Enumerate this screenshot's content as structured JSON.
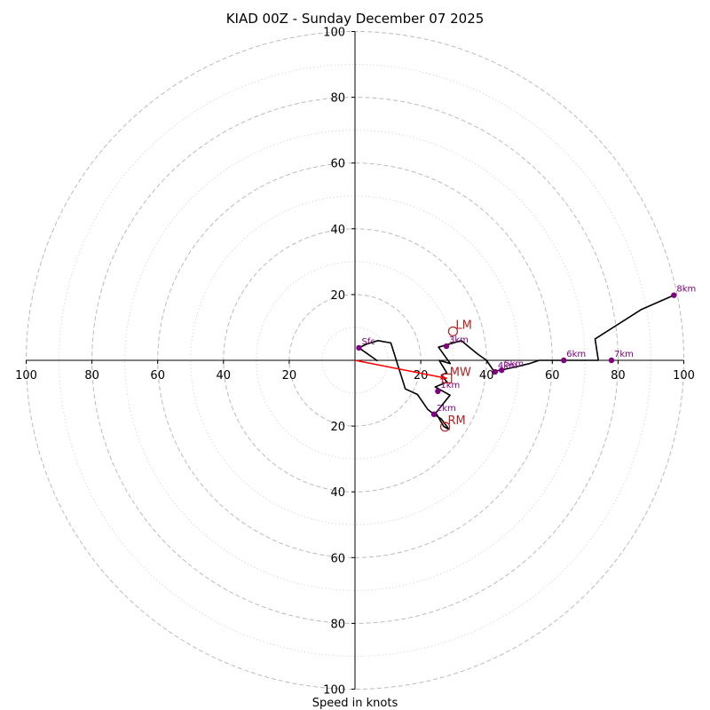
{
  "chart_data": {
    "type": "hodograph",
    "title": "KIAD 00Z - Sunday December 07 2025",
    "xlabel": "Speed in knots",
    "ylabel": "",
    "range": [
      -100,
      100
    ],
    "ring_major": [
      20,
      40,
      60,
      80,
      100
    ],
    "ring_minor": [
      10,
      30,
      50,
      70,
      90
    ],
    "x_tick_labels": [
      {
        "value": -100,
        "label": "100"
      },
      {
        "value": -80,
        "label": "80"
      },
      {
        "value": -60,
        "label": "60"
      },
      {
        "value": -40,
        "label": "40"
      },
      {
        "value": -20,
        "label": "20"
      },
      {
        "value": 20,
        "label": "20"
      },
      {
        "value": 40,
        "label": "40"
      },
      {
        "value": 60,
        "label": "60"
      },
      {
        "value": 80,
        "label": "80"
      },
      {
        "value": 100,
        "label": "100"
      }
    ],
    "y_tick_labels": [
      {
        "value": 100,
        "label": "100"
      },
      {
        "value": 80,
        "label": "80"
      },
      {
        "value": 60,
        "label": "60"
      },
      {
        "value": 40,
        "label": "40"
      },
      {
        "value": 20,
        "label": "20"
      },
      {
        "value": -20,
        "label": "20"
      },
      {
        "value": -40,
        "label": "40"
      },
      {
        "value": -60,
        "label": "60"
      },
      {
        "value": -80,
        "label": "80"
      },
      {
        "value": -100,
        "label": "100"
      }
    ],
    "wind_profile": {
      "u": [
        1.2,
        3.7,
        7.0,
        10.9,
        15.3,
        19.0,
        22.1,
        24.0,
        26.2,
        28.6,
        27.0,
        24.6,
        28.9,
        24.4,
        28.0,
        26.3,
        27.9,
        25.6,
        29.0,
        25.4,
        32.3,
        37.2,
        40.0,
        42.1,
        43.8,
        48.9,
        53.0,
        56.0,
        63.5,
        74.0,
        73.0,
        87.0,
        97.0
      ],
      "v": [
        3.8,
        5.0,
        6.0,
        5.3,
        -8.7,
        -10.4,
        -14.9,
        -16.4,
        -17.8,
        -21.0,
        -20.1,
        -16.0,
        -10.6,
        -8.1,
        -6.6,
        -4.5,
        -3.8,
        0.0,
        -1.0,
        4.0,
        6.0,
        2.0,
        0.0,
        -3.1,
        -3.1,
        -2.0,
        -1.0,
        0.0,
        0.0,
        0.0,
        6.5,
        15.4,
        19.8
      ]
    },
    "start_segment": {
      "u": [
        1.2,
        6.9
      ],
      "v": [
        3.8,
        -0.2
      ]
    },
    "height_markers": [
      {
        "label": "Sfc",
        "u": 1.2,
        "v": 3.8
      },
      {
        "label": "1km",
        "u": 25.2,
        "v": -9.4
      },
      {
        "label": "2km",
        "u": 24.0,
        "v": -16.4
      },
      {
        "label": "3km",
        "u": 27.8,
        "v": 4.3
      },
      {
        "label": "4km",
        "u": 42.6,
        "v": -3.5
      },
      {
        "label": "5km",
        "u": 44.6,
        "v": -3.0
      },
      {
        "label": "6km",
        "u": 63.5,
        "v": 0.0
      },
      {
        "label": "7km",
        "u": 78.0,
        "v": 0.0
      },
      {
        "label": "8km",
        "u": 97.0,
        "v": 19.8
      }
    ],
    "mean_wind": {
      "label": "MW",
      "u": 28.0,
      "v": -5.5
    },
    "left_mover": {
      "label": "LM",
      "u": 29.8,
      "v": 8.8
    },
    "right_mover": {
      "label": "RM",
      "u": 27.4,
      "v": -20.2
    },
    "colors": {
      "profile": "#000000",
      "markers": "#800080",
      "motion": "#b22222",
      "mean_wind_vector": "#ff0000",
      "ring": "#bbbbbb",
      "axis": "#000000"
    }
  }
}
